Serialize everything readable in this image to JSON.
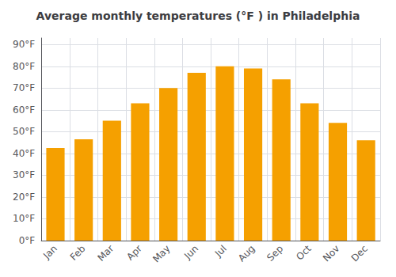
{
  "chart_data": {
    "type": "bar",
    "title": "Average monthly temperatures (°F ) in Philadelphia",
    "categories": [
      "Jan",
      "Feb",
      "Mar",
      "Apr",
      "May",
      "Jun",
      "Jul",
      "Aug",
      "Sep",
      "Oct",
      "Nov",
      "Dec"
    ],
    "values": [
      42.5,
      46.5,
      55.0,
      63.0,
      70.0,
      77.0,
      80.0,
      79.0,
      74.0,
      63.0,
      54.0,
      46.0
    ],
    "color": "#F5A000",
    "ylim": [
      0,
      93
    ],
    "yticks": [
      {
        "value": 0,
        "label": "0°F"
      },
      {
        "value": 10,
        "label": "10°F"
      },
      {
        "value": 20,
        "label": "20°F"
      },
      {
        "value": 30,
        "label": "30°F"
      },
      {
        "value": 40,
        "label": "40°F"
      },
      {
        "value": 50,
        "label": "50°F"
      },
      {
        "value": 60,
        "label": "60°F"
      },
      {
        "value": 70,
        "label": "70°F"
      },
      {
        "value": 80,
        "label": "80°F"
      },
      {
        "value": 90,
        "label": "90°F"
      }
    ],
    "grid": true
  }
}
